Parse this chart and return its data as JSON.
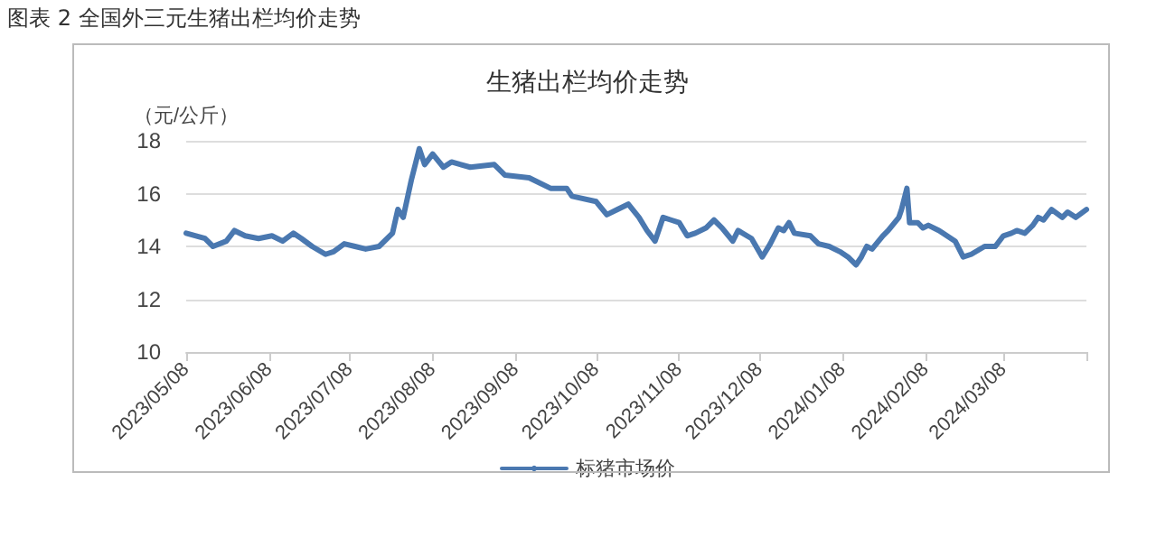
{
  "chart_data": {
    "type": "line",
    "title": "生猪出栏均价走势",
    "ylabel": "（元/公斤）",
    "annotations": [
      "图表 2 全国外三元生猪出栏均价走势"
    ],
    "x": [
      "2023-05-08",
      "2023-05-15",
      "2023-05-18",
      "2023-05-23",
      "2023-05-26",
      "2023-05-30",
      "2023-06-04",
      "2023-06-09",
      "2023-06-13",
      "2023-06-17",
      "2023-06-20",
      "2023-06-24",
      "2023-06-29",
      "2023-07-02",
      "2023-07-06",
      "2023-07-10",
      "2023-07-14",
      "2023-07-19",
      "2023-07-24",
      "2023-07-26",
      "2023-07-28",
      "2023-07-31",
      "2023-08-03",
      "2023-08-05",
      "2023-08-08",
      "2023-08-12",
      "2023-08-15",
      "2023-08-22",
      "2023-08-31",
      "2023-09-04",
      "2023-09-13",
      "2023-09-21",
      "2023-09-27",
      "2023-09-29",
      "2023-10-08",
      "2023-10-12",
      "2023-10-16",
      "2023-10-20",
      "2023-10-24",
      "2023-10-27",
      "2023-10-30",
      "2023-11-02",
      "2023-11-05",
      "2023-11-08",
      "2023-11-11",
      "2023-11-14",
      "2023-11-18",
      "2023-11-21",
      "2023-11-24",
      "2023-11-28",
      "2023-11-30",
      "2023-12-05",
      "2023-12-09",
      "2023-12-12",
      "2023-12-15",
      "2023-12-17",
      "2023-12-19",
      "2023-12-21",
      "2023-12-27",
      "2023-12-30",
      "2024-01-03",
      "2024-01-07",
      "2024-01-10",
      "2024-01-13",
      "2024-01-15",
      "2024-01-17",
      "2024-01-19",
      "2024-01-23",
      "2024-01-25",
      "2024-01-29",
      "2024-01-30",
      "2024-02-01",
      "2024-02-02",
      "2024-02-05",
      "2024-02-07",
      "2024-02-09",
      "2024-02-13",
      "2024-02-19",
      "2024-02-22",
      "2024-02-25",
      "2024-03-01",
      "2024-03-05",
      "2024-03-08",
      "2024-03-11",
      "2024-03-13",
      "2024-03-16",
      "2024-03-19",
      "2024-03-21",
      "2024-03-23",
      "2024-03-26",
      "2024-03-30",
      "2024-04-01",
      "2024-04-04",
      "2024-04-08"
    ],
    "series": [
      {
        "name": "标猪市场价",
        "color": "#4a78b0",
        "values": [
          14.5,
          14.3,
          14.0,
          14.2,
          14.6,
          14.4,
          14.3,
          14.4,
          14.2,
          14.5,
          14.3,
          14.0,
          13.7,
          13.8,
          14.1,
          14.0,
          13.9,
          14.0,
          14.5,
          15.4,
          15.1,
          16.5,
          17.7,
          17.1,
          17.5,
          17.0,
          17.2,
          17.0,
          17.1,
          16.7,
          16.6,
          16.2,
          16.2,
          15.9,
          15.7,
          15.2,
          15.4,
          15.6,
          15.1,
          14.6,
          14.2,
          15.1,
          15.0,
          14.9,
          14.4,
          14.5,
          14.7,
          15.0,
          14.7,
          14.2,
          14.6,
          14.3,
          13.6,
          14.1,
          14.7,
          14.6,
          14.9,
          14.5,
          14.4,
          14.1,
          14.0,
          13.8,
          13.6,
          13.3,
          13.6,
          14.0,
          13.9,
          14.4,
          14.6,
          15.1,
          15.4,
          16.2,
          14.9,
          14.9,
          14.7,
          14.8,
          14.6,
          14.2,
          13.6,
          13.7,
          14.0,
          14.0,
          14.4,
          14.5,
          14.6,
          14.5,
          14.8,
          15.1,
          15.0,
          15.4,
          15.1,
          15.3,
          15.1,
          15.4
        ]
      }
    ],
    "xlim": [
      "2023-05-08",
      "2024-04-08"
    ],
    "xticks": [
      {
        "value": "2023-05-08",
        "label": "2023/05/08"
      },
      {
        "value": "2023-06-08",
        "label": "2023/06/08"
      },
      {
        "value": "2023-07-08",
        "label": "2023/07/08"
      },
      {
        "value": "2023-08-08",
        "label": "2023/08/08"
      },
      {
        "value": "2023-09-08",
        "label": "2023/09/08"
      },
      {
        "value": "2023-10-08",
        "label": "2023/10/08"
      },
      {
        "value": "2023-11-08",
        "label": "2023/11/08"
      },
      {
        "value": "2023-12-08",
        "label": "2023/12/08"
      },
      {
        "value": "2024-01-08",
        "label": "2024/01/08"
      },
      {
        "value": "2024-02-08",
        "label": "2024/02/08"
      },
      {
        "value": "2024-03-08",
        "label": "2024/03/08"
      },
      {
        "value": "2024-04-08",
        "label": null
      }
    ],
    "ylim": [
      10,
      18
    ],
    "yticks": [
      10,
      12,
      14,
      16,
      18
    ],
    "grid": "y",
    "legend": "bottom",
    "marker": "none",
    "line_style": "solid"
  }
}
